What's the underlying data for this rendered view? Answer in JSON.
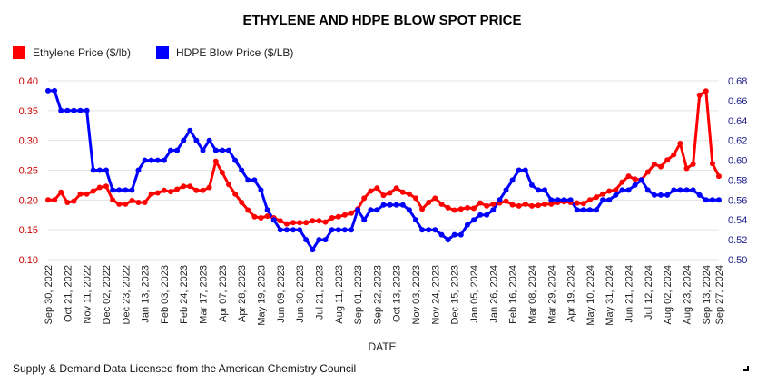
{
  "source_note": "Supply & Demand Data Licensed from the American Chemistry Council",
  "colors": {
    "ethylene": "#ff0000",
    "hdpe": "#0000ff",
    "left_axis_text": "#cc0000",
    "right_axis_text": "#1a1a8c",
    "grid": "#e4e4e4"
  },
  "chart_data": {
    "type": "line",
    "title": "ETHYLENE AND HDPE BLOW SPOT PRICE",
    "xlabel": "DATE",
    "x_ticks": [
      "Sep 30, 2022",
      "Oct 21, 2022",
      "Nov 11, 2022",
      "Dec 02, 2022",
      "Dec 23, 2022",
      "Jan 13, 2023",
      "Feb 03, 2023",
      "Feb 24, 2023",
      "Mar 17, 2023",
      "Apr 07, 2023",
      "Apr 28, 2023",
      "May 19, 2023",
      "Jun 09, 2023",
      "Jun 30, 2023",
      "Jul 21, 2023",
      "Aug 11, 2023",
      "Sep 01, 2023",
      "Sep 22, 2023",
      "Oct 13, 2023",
      "Nov 03, 2023",
      "Nov 24, 2023",
      "Dec 15, 2023",
      "Jan 05, 2024",
      "Jan 26, 2024",
      "Feb 16, 2024",
      "Mar 08, 2024",
      "Mar 29, 2024",
      "Apr 19, 2024",
      "May 10, 2024",
      "May 31, 2024",
      "Jun 21, 2024",
      "Jul 12, 2024",
      "Aug 02, 2024",
      "Aug 23, 2024",
      "Sep 13, 2024",
      "Sep 27, 2024"
    ],
    "y_left": {
      "ticks": [
        "0.10",
        "0.15",
        "0.20",
        "0.25",
        "0.30",
        "0.35",
        "0.40"
      ],
      "ylim": [
        0.1,
        0.4
      ]
    },
    "y_right": {
      "ticks": [
        "0.50",
        "0.52",
        "0.54",
        "0.56",
        "0.58",
        "0.60",
        "0.62",
        "0.64",
        "0.66",
        "0.68"
      ],
      "ylim": [
        0.5,
        0.68
      ]
    },
    "legend_position": "top-left",
    "grid": true,
    "series": [
      {
        "name": "Ethylene Price ($/lb)",
        "axis": "left",
        "x_start": "2022-09-30",
        "x_step_days": 7,
        "values": [
          0.2,
          0.2,
          0.213,
          0.196,
          0.198,
          0.21,
          0.21,
          0.215,
          0.221,
          0.223,
          0.2,
          0.193,
          0.193,
          0.199,
          0.196,
          0.196,
          0.21,
          0.212,
          0.216,
          0.214,
          0.218,
          0.223,
          0.223,
          0.216,
          0.216,
          0.221,
          0.265,
          0.246,
          0.226,
          0.21,
          0.196,
          0.183,
          0.172,
          0.17,
          0.173,
          0.17,
          0.165,
          0.16,
          0.162,
          0.162,
          0.162,
          0.165,
          0.165,
          0.163,
          0.17,
          0.172,
          0.175,
          0.178,
          0.185,
          0.203,
          0.215,
          0.22,
          0.208,
          0.212,
          0.22,
          0.213,
          0.21,
          0.203,
          0.185,
          0.196,
          0.203,
          0.193,
          0.187,
          0.183,
          0.185,
          0.187,
          0.186,
          0.195,
          0.19,
          0.193,
          0.195,
          0.198,
          0.192,
          0.19,
          0.193,
          0.19,
          0.191,
          0.193,
          0.193,
          0.196,
          0.197,
          0.196,
          0.195,
          0.194,
          0.2,
          0.205,
          0.21,
          0.215,
          0.217,
          0.23,
          0.24,
          0.235,
          0.234,
          0.247,
          0.26,
          0.256,
          0.267,
          0.276,
          0.295,
          0.253,
          0.26,
          0.376,
          0.383,
          0.261,
          0.24
        ]
      },
      {
        "name": "HDPE Blow Price ($/LB)",
        "axis": "right",
        "x_start": "2022-09-30",
        "x_step_days": 7,
        "values": [
          0.67,
          0.67,
          0.65,
          0.65,
          0.65,
          0.65,
          0.65,
          0.59,
          0.59,
          0.59,
          0.57,
          0.57,
          0.57,
          0.57,
          0.59,
          0.6,
          0.6,
          0.6,
          0.6,
          0.61,
          0.61,
          0.62,
          0.63,
          0.62,
          0.61,
          0.62,
          0.61,
          0.61,
          0.61,
          0.6,
          0.59,
          0.58,
          0.58,
          0.57,
          0.55,
          0.54,
          0.53,
          0.53,
          0.53,
          0.53,
          0.52,
          0.51,
          0.52,
          0.52,
          0.53,
          0.53,
          0.53,
          0.53,
          0.55,
          0.54,
          0.55,
          0.55,
          0.555,
          0.555,
          0.555,
          0.555,
          0.55,
          0.54,
          0.53,
          0.53,
          0.53,
          0.525,
          0.52,
          0.525,
          0.525,
          0.535,
          0.54,
          0.545,
          0.545,
          0.55,
          0.56,
          0.57,
          0.58,
          0.59,
          0.59,
          0.575,
          0.57,
          0.57,
          0.56,
          0.56,
          0.56,
          0.56,
          0.55,
          0.55,
          0.55,
          0.55,
          0.56,
          0.56,
          0.565,
          0.57,
          0.57,
          0.575,
          0.58,
          0.57,
          0.565,
          0.565,
          0.565,
          0.57,
          0.57,
          0.57,
          0.57,
          0.565,
          0.56,
          0.56,
          0.56
        ]
      }
    ]
  }
}
